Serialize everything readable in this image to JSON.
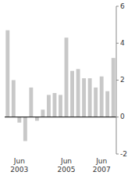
{
  "chart_data": {
    "type": "bar",
    "categories": [
      null,
      null,
      "Jun\n2003",
      null,
      null,
      null,
      null,
      null,
      null,
      null,
      "Jun\n2005",
      null,
      null,
      null,
      null,
      null,
      "Jun\n2007",
      null,
      null
    ],
    "values": [
      4.7,
      2.0,
      -0.3,
      -1.3,
      1.6,
      -0.2,
      0.4,
      1.2,
      1.3,
      1.2,
      4.3,
      2.5,
      2.6,
      2.1,
      2.1,
      1.6,
      2.2,
      1.4,
      3.2
    ],
    "color": "#c8c8c8",
    "ylim": [
      -2,
      6
    ],
    "yticks": [
      -2,
      0,
      2,
      4,
      6
    ],
    "grid": false
  }
}
